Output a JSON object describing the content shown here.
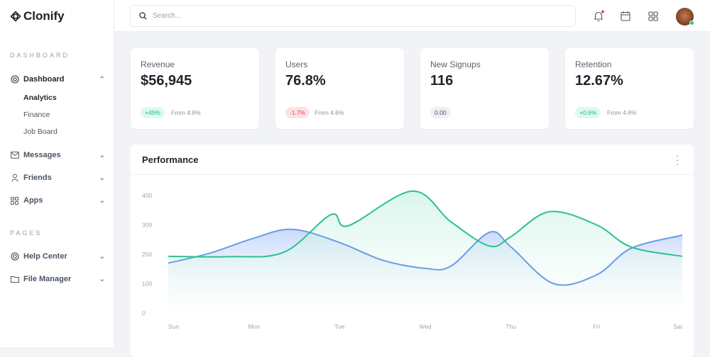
{
  "app": {
    "name": "Clonify"
  },
  "sidebar": {
    "sections": [
      {
        "label": "DASHBOARD"
      },
      {
        "label": "PAGES"
      }
    ],
    "items": [
      {
        "label": "Dashboard",
        "icon": "dashboard-icon",
        "expanded": true,
        "children": [
          {
            "label": "Analytics",
            "active": true
          },
          {
            "label": "Finance"
          },
          {
            "label": "Job Board"
          }
        ]
      },
      {
        "label": "Messages",
        "icon": "mail-icon"
      },
      {
        "label": "Friends",
        "icon": "user-icon"
      },
      {
        "label": "Apps",
        "icon": "grid-icon"
      },
      {
        "label": "Help Center",
        "icon": "lifebuoy-icon"
      },
      {
        "label": "File Manager",
        "icon": "folder-icon"
      }
    ]
  },
  "header": {
    "search_placeholder": "Search...",
    "icons": [
      "bell-icon",
      "calendar-icon",
      "apps-grid-icon"
    ],
    "notification_dot_color": "#e5484d",
    "status_color": "#22c58b"
  },
  "stats": [
    {
      "label": "Revenue",
      "value": "$56,945",
      "change": "+45%",
      "trend": "up",
      "from": "From 4.6%"
    },
    {
      "label": "Users",
      "value": "76.8%",
      "change": "-1.7%",
      "trend": "down",
      "from": "From 4.6%"
    },
    {
      "label": "New Signups",
      "value": "116",
      "change": "0.00",
      "trend": "neutral",
      "from": ""
    },
    {
      "label": "Retention",
      "value": "12.67%",
      "change": "+0.6%",
      "trend": "up",
      "from": "From 4.6%"
    }
  ],
  "colors": {
    "up_bg": "#dcfaf0",
    "up_fg": "#1fb981",
    "down_bg": "#fde2e4",
    "down_fg": "#e5484d",
    "neutral_bg": "#eef0f3",
    "neutral_fg": "#4b5563"
  },
  "performance": {
    "title": "Performance"
  },
  "chart_data": {
    "type": "area",
    "categories": [
      "Sun",
      "Mon",
      "Tue",
      "Wed",
      "Thu",
      "Fri",
      "Sat"
    ],
    "ylim": [
      0,
      400
    ],
    "yticks": [
      0,
      100,
      200,
      300,
      400
    ],
    "grid": false,
    "series": [
      {
        "color": "#6a9be8",
        "points": [
          [
            0,
            170
          ],
          [
            0.5,
            205
          ],
          [
            1,
            255
          ],
          [
            1.45,
            285
          ],
          [
            2,
            240
          ],
          [
            2.5,
            180
          ],
          [
            3,
            152
          ],
          [
            3.3,
            160
          ],
          [
            3.75,
            275
          ],
          [
            4,
            225
          ],
          [
            4.5,
            100
          ],
          [
            5,
            130
          ],
          [
            5.4,
            220
          ],
          [
            6,
            265
          ]
        ]
      },
      {
        "color": "#2cc08e",
        "points": [
          [
            0,
            193
          ],
          [
            0.7,
            192
          ],
          [
            1.35,
            207
          ],
          [
            1.9,
            335
          ],
          [
            2.1,
            297
          ],
          [
            2.85,
            415
          ],
          [
            3.3,
            310
          ],
          [
            3.75,
            228
          ],
          [
            4.0,
            260
          ],
          [
            4.45,
            345
          ],
          [
            5.0,
            300
          ],
          [
            5.4,
            225
          ],
          [
            6,
            193
          ]
        ]
      }
    ]
  }
}
